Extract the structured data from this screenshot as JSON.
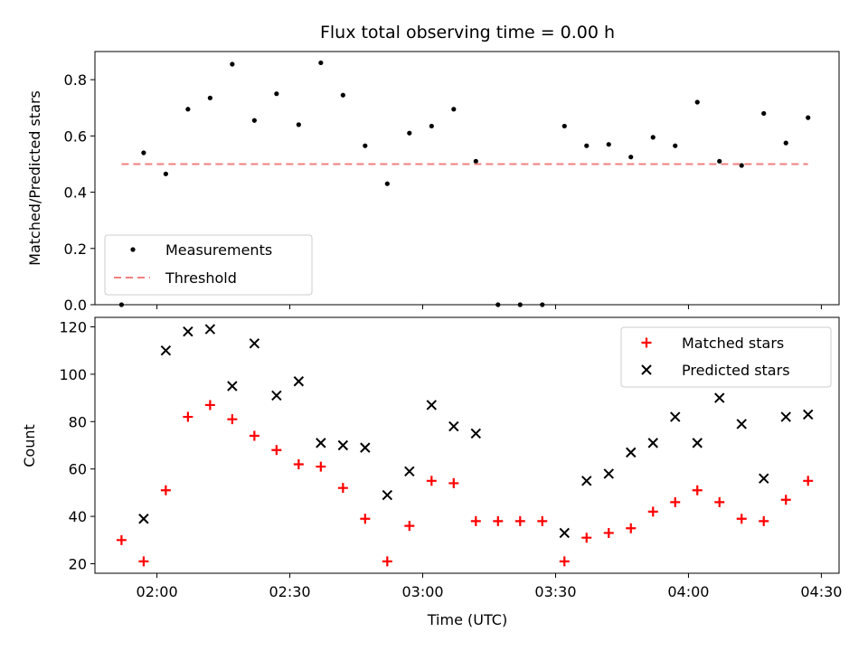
{
  "chart_data": [
    {
      "type": "scatter",
      "title": "Flux total observing time = 0.00 h",
      "xlabel": "",
      "ylabel": "Matched/Predicted stars",
      "xlim": [
        "01:46",
        "04:34"
      ],
      "ylim": [
        0,
        0.9
      ],
      "yticks": [
        "0.0",
        "0.2",
        "0.4",
        "0.6",
        "0.8"
      ],
      "grid": false,
      "legend_position": "lower-left",
      "series": [
        {
          "name": "Measurements",
          "kind": "scatter",
          "color": "#000000",
          "x": [
            "01:52",
            "01:57",
            "02:02",
            "02:07",
            "02:12",
            "02:17",
            "02:22",
            "02:27",
            "02:32",
            "02:37",
            "02:42",
            "02:47",
            "02:52",
            "02:57",
            "03:02",
            "03:07",
            "03:12",
            "03:17",
            "03:22",
            "03:27",
            "03:32",
            "03:37",
            "03:42",
            "03:47",
            "03:52",
            "03:57",
            "04:02",
            "04:07",
            "04:12",
            "04:17",
            "04:22",
            "04:27"
          ],
          "y": [
            0.0,
            0.54,
            0.465,
            0.695,
            0.735,
            0.855,
            0.655,
            0.75,
            0.64,
            0.86,
            0.745,
            0.565,
            0.43,
            0.61,
            0.635,
            0.695,
            0.51,
            0.0,
            0.0,
            0.0,
            0.635,
            0.565,
            0.57,
            0.525,
            0.595,
            0.565,
            0.72,
            0.51,
            0.495,
            0.68,
            0.575,
            0.665
          ]
        },
        {
          "name": "Threshold",
          "kind": "line",
          "style": "dashed",
          "color": "#f08080",
          "x": [
            "01:52",
            "04:27"
          ],
          "y": [
            0.5,
            0.5
          ]
        }
      ]
    },
    {
      "type": "scatter",
      "title": "",
      "xlabel": "Time (UTC)",
      "ylabel": "Count",
      "xlim": [
        "01:46",
        "04:34"
      ],
      "ylim": [
        16,
        124
      ],
      "yticks": [
        "20",
        "40",
        "60",
        "80",
        "100",
        "120"
      ],
      "xticks": [
        "02:00",
        "02:30",
        "03:00",
        "03:30",
        "04:00",
        "04:30"
      ],
      "grid": false,
      "legend_position": "upper-right",
      "series": [
        {
          "name": "Matched stars",
          "marker": "plus",
          "color": "#ff0000",
          "x": [
            "01:52",
            "01:57",
            "02:02",
            "02:07",
            "02:12",
            "02:17",
            "02:22",
            "02:27",
            "02:32",
            "02:37",
            "02:42",
            "02:47",
            "02:52",
            "02:57",
            "03:02",
            "03:07",
            "03:12",
            "03:17",
            "03:22",
            "03:27",
            "03:32",
            "03:37",
            "03:42",
            "03:47",
            "03:52",
            "03:57",
            "04:02",
            "04:07",
            "04:12",
            "04:17",
            "04:22",
            "04:27"
          ],
          "y": [
            30,
            21,
            51,
            82,
            87,
            81,
            74,
            68,
            62,
            61,
            52,
            39,
            21,
            36,
            55,
            54,
            38,
            38,
            38,
            38,
            21,
            31,
            33,
            35,
            42,
            46,
            51,
            46,
            39,
            38,
            47,
            55
          ]
        },
        {
          "name": "Predicted stars",
          "marker": "x",
          "color": "#000000",
          "x": [
            "01:57",
            "02:02",
            "02:07",
            "02:12",
            "02:17",
            "02:22",
            "02:27",
            "02:32",
            "02:37",
            "02:42",
            "02:47",
            "02:52",
            "02:57",
            "03:02",
            "03:07",
            "03:12",
            "03:32",
            "03:37",
            "03:42",
            "03:47",
            "03:52",
            "03:57",
            "04:02",
            "04:07",
            "04:12",
            "04:17",
            "04:22",
            "04:27"
          ],
          "y": [
            39,
            110,
            118,
            119,
            95,
            113,
            91,
            97,
            71,
            70,
            69,
            49,
            59,
            87,
            78,
            75,
            33,
            55,
            58,
            67,
            71,
            82,
            71,
            90,
            79,
            56,
            82,
            83
          ]
        }
      ]
    }
  ]
}
